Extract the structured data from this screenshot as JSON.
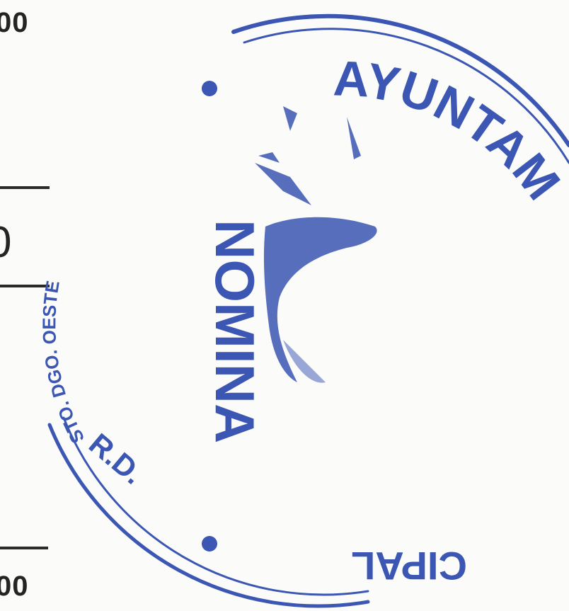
{
  "document": {
    "amounts": {
      "top": "00",
      "middle": "0",
      "bottom": "00"
    }
  },
  "stamp": {
    "color": "#3b56b3",
    "top_arc_text": "AYUNTAM",
    "left_arc_text": "STO. DGO. OESTE",
    "lower_left_text": "R.D.",
    "bottom_arc_text": "CIPAL",
    "center_text": "NOMINA"
  }
}
